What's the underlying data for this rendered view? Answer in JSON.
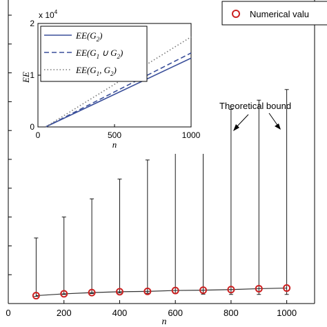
{
  "chart_data": [
    {
      "type": "scatter",
      "xlabel": "n",
      "ylabel": "",
      "xlim": [
        0,
        1100
      ],
      "xticks": [
        0,
        200,
        400,
        600,
        800,
        1000
      ],
      "ylim": [
        0,
        1.0
      ],
      "legend": {
        "placement": "top-right",
        "label": "Numerical valu"
      },
      "annotation": "Theoretical bound",
      "series": [
        {
          "name": "Numerical valu",
          "x": [
            100,
            200,
            300,
            400,
            500,
            600,
            700,
            800,
            900,
            1000
          ],
          "y": [
            0.026,
            0.032,
            0.036,
            0.039,
            0.04,
            0.043,
            0.044,
            0.046,
            0.049,
            0.051
          ],
          "lower": [
            0.024,
            0.03,
            0.033,
            0.035,
            0.034,
            0.033,
            0.031,
            0.03,
            0.03,
            0.03
          ],
          "upper": [
            0.216,
            0.285,
            0.345,
            0.41,
            0.473,
            0.525,
            0.575,
            0.64,
            0.67,
            0.705
          ]
        }
      ]
    },
    {
      "type": "line",
      "title": "",
      "xlabel": "n",
      "ylabel": "EE",
      "y_multiplier": "x 10^4",
      "xlim": [
        0,
        1000
      ],
      "xticks": [
        0,
        500,
        1000
      ],
      "ylim": [
        0,
        2
      ],
      "yticks": [
        0,
        1,
        2
      ],
      "legend": {
        "placement": "top-left"
      },
      "series": [
        {
          "name": "EE(G2)",
          "label_main": "EE(G",
          "label_sub": "2",
          "label_end": ")",
          "style": "solid",
          "color": "#3a4f9a",
          "x": [
            50,
            1000
          ],
          "y": [
            0,
            1.33
          ]
        },
        {
          "name": "EE(G1 ∪ G2)",
          "label_main": "EE(G",
          "label_sub": "1",
          "label_mid": " ∪ G",
          "label_sub2": "2",
          "label_end": ")",
          "style": "dashed",
          "color": "#3a4f9a",
          "x": [
            50,
            1000
          ],
          "y": [
            0,
            1.43
          ]
        },
        {
          "name": "EE(G1, G2)",
          "label_main": "EE(G",
          "label_sub": "1",
          "label_mid": ", G",
          "label_sub2": "2",
          "label_end": ")",
          "style": "dotted",
          "color": "#777777",
          "x": [
            50,
            1000
          ],
          "y": [
            0,
            1.74
          ]
        }
      ]
    }
  ]
}
